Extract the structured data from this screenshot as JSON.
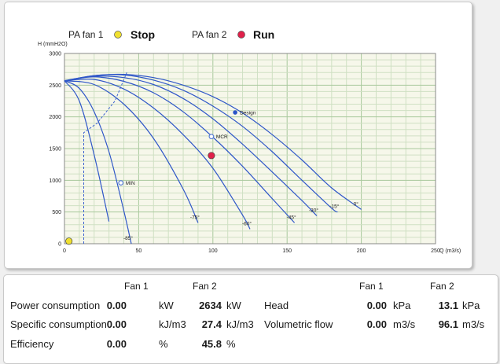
{
  "legend": {
    "fan1": {
      "label": "PA fan 1",
      "status": "Stop",
      "color": "#f0e030"
    },
    "fan2": {
      "label": "PA fan 2",
      "status": "Run",
      "color": "#e0204a"
    }
  },
  "chart_data": {
    "type": "line",
    "title": "",
    "xlabel": "Q (m3/s)",
    "ylabel": "H (mmH2O)",
    "xlim": [
      0,
      250
    ],
    "ylim": [
      0,
      3000
    ],
    "x_ticks": [
      0,
      50,
      100,
      150,
      200,
      250
    ],
    "y_ticks": [
      0,
      500,
      1000,
      1500,
      2000,
      2500,
      3000
    ],
    "grid": true,
    "series": [
      {
        "name": "0°",
        "x": [
          0,
          20,
          40,
          60,
          80,
          100,
          120,
          140,
          160,
          180,
          200
        ],
        "y": [
          2570,
          2650,
          2670,
          2620,
          2500,
          2320,
          2060,
          1720,
          1320,
          880,
          540
        ]
      },
      {
        "name": "-15°",
        "x": [
          0,
          20,
          40,
          60,
          80,
          100,
          120,
          140,
          160,
          180,
          184
        ],
        "y": [
          2570,
          2650,
          2660,
          2580,
          2420,
          2170,
          1850,
          1450,
          1000,
          560,
          500
        ]
      },
      {
        "name": "-30°",
        "x": [
          0,
          20,
          40,
          60,
          80,
          100,
          120,
          140,
          160,
          170
        ],
        "y": [
          2570,
          2640,
          2620,
          2510,
          2290,
          1970,
          1570,
          1130,
          680,
          440
        ]
      },
      {
        "name": "-45°",
        "x": [
          0,
          20,
          40,
          60,
          80,
          100,
          120,
          140,
          155
        ],
        "y": [
          2570,
          2630,
          2560,
          2380,
          2080,
          1680,
          1220,
          710,
          330
        ]
      },
      {
        "name": "-60°",
        "x": [
          0,
          20,
          40,
          60,
          80,
          100,
          120,
          125
        ],
        "y": [
          2570,
          2590,
          2440,
          2140,
          1720,
          1190,
          450,
          230
        ]
      },
      {
        "name": "-75°",
        "x": [
          0,
          20,
          40,
          60,
          80,
          90
        ],
        "y": [
          2570,
          2510,
          2200,
          1660,
          860,
          330
        ]
      },
      {
        "name": "-85°",
        "x": [
          0,
          10,
          20,
          30,
          40,
          45
        ],
        "y": [
          2570,
          2450,
          2080,
          1450,
          520,
          0
        ]
      },
      {
        "name": "",
        "x": [
          0,
          10,
          20,
          30
        ],
        "y": [
          2570,
          2250,
          1400,
          350
        ]
      }
    ],
    "surge_line": {
      "x": [
        13,
        13,
        22,
        34,
        42
      ],
      "y": [
        0,
        1750,
        1900,
        2250,
        2700
      ]
    },
    "points": [
      {
        "label": "Design",
        "x": 115,
        "y": 2070,
        "style": "filled",
        "color": "#2a54c8"
      },
      {
        "label": "MCR",
        "x": 99,
        "y": 1690,
        "style": "hollow",
        "color": "#5b7fd6"
      },
      {
        "label": "MIN",
        "x": 38,
        "y": 960,
        "style": "hollow",
        "color": "#5b7fd6"
      },
      {
        "label": "",
        "x": 99,
        "y": 1390,
        "style": "operating",
        "color": "#e0204a"
      },
      {
        "label": "",
        "x": 3,
        "y": 40,
        "style": "operating",
        "color": "#f0e030"
      }
    ]
  },
  "table": {
    "group1": {
      "col1": "Fan 1",
      "col2": "Fan 2"
    },
    "group2": {
      "col1": "Fan 1",
      "col2": "Fan 2"
    },
    "rows_left": [
      {
        "label": "Power consumption",
        "fan1": "0.00",
        "unit1": "kW",
        "fan2": "2634",
        "unit2": "kW"
      },
      {
        "label": "Specific consumption",
        "fan1": "0.00",
        "unit1": "kJ/m3",
        "fan2": "27.4",
        "unit2": "kJ/m3"
      },
      {
        "label": "Efficiency",
        "fan1": "0.00",
        "unit1": "%",
        "fan2": "45.8",
        "unit2": "%"
      }
    ],
    "rows_right": [
      {
        "label": "Head",
        "fan1": "0.00",
        "unit1": "kPa",
        "fan2": "13.1",
        "unit2": "kPa"
      },
      {
        "label": "Volumetric flow",
        "fan1": "0.00",
        "unit1": "m3/s",
        "fan2": "96.1",
        "unit2": "m3/s"
      }
    ]
  }
}
